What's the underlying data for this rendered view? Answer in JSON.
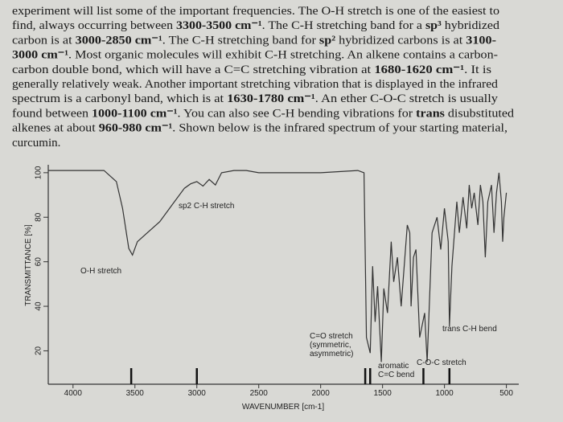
{
  "paragraph": [
    [
      "experiment will list some of the important frequencies.  The O-H stretch is one of the easiest to"
    ],
    [
      "find, always occurring between ",
      {
        "bold": "3300-3500 cm⁻¹"
      },
      ". The C-H stretching band for a ",
      {
        "bold": "sp³"
      },
      " hybridized"
    ],
    [
      "carbon is at ",
      {
        "bold": "3000-2850 cm⁻¹"
      },
      ".  The C-H stretching band for ",
      {
        "bold": "sp²"
      },
      " hybridized carbons is at ",
      {
        "bold": "3100-"
      }
    ],
    [
      {
        "bold": "3000 cm⁻¹"
      },
      ".  Most organic molecules will exhibit C-H stretching. An alkene contains a carbon-"
    ],
    [
      "carbon double bond, which will have a C=C stretching vibration at ",
      {
        "bold": "1680-1620 cm⁻¹"
      },
      ". It is"
    ],
    [
      "generally relatively weak. Another important stretching vibration that is displayed in the infrared"
    ],
    [
      "spectrum is a carbonyl band, which is at ",
      {
        "bold": "1630-1780 cm⁻¹"
      },
      ". An ether C-O-C stretch is usually"
    ],
    [
      "found between ",
      {
        "bold": "1000-1100 cm⁻¹"
      },
      ".  You can also see C-H bending vibrations for ",
      {
        "bold": "trans"
      },
      " disubstituted"
    ],
    [
      "alkenes at about ",
      {
        "bold": "960-980 cm⁻¹"
      },
      ".  Shown below is the infrared spectrum of your starting material,"
    ],
    [
      "curcumin."
    ]
  ],
  "chart_data": {
    "type": "line",
    "x_label": "WAVENUMBER [cm-1]",
    "y_label": "TRANSMITTANCE [%]",
    "xlim": [
      4200,
      400
    ],
    "ylim": [
      5,
      105
    ],
    "xticks": [
      4000,
      3500,
      3000,
      2500,
      2000,
      1500,
      1000,
      500
    ],
    "yticks": [
      20,
      40,
      60,
      80,
      100
    ],
    "color": "#333333",
    "x": [
      4200,
      3750,
      3650,
      3600,
      3550,
      3520,
      3480,
      3400,
      3300,
      3200,
      3100,
      3050,
      3000,
      2950,
      2900,
      2850,
      2800,
      2700,
      2600,
      2500,
      2000,
      1700,
      1650,
      1630,
      1600,
      1580,
      1560,
      1540,
      1510,
      1490,
      1460,
      1430,
      1410,
      1380,
      1350,
      1300,
      1280,
      1270,
      1250,
      1230,
      1200,
      1160,
      1140,
      1100,
      1060,
      1030,
      1000,
      970,
      960,
      940,
      900,
      880,
      850,
      820,
      800,
      780,
      760,
      730,
      710,
      690,
      670,
      650,
      620,
      600,
      580,
      560,
      540,
      530,
      520,
      500
    ],
    "values": [
      101,
      101,
      96,
      84,
      66,
      63,
      69,
      73,
      78,
      85.5,
      93,
      95,
      96,
      94,
      97,
      94.5,
      100,
      101,
      101,
      100,
      100,
      101,
      100,
      26,
      19,
      58,
      33,
      49,
      15,
      48,
      37,
      69,
      51,
      62,
      40,
      76.5,
      73,
      40,
      62,
      65.5,
      26,
      37,
      15,
      73,
      80,
      65.5,
      84,
      69,
      31,
      58,
      87,
      73,
      89,
      75,
      94.5,
      84,
      91,
      76.5,
      94.5,
      87,
      62,
      87,
      94.5,
      73,
      91,
      100,
      87,
      69,
      80,
      91
    ],
    "markers": [
      3530,
      3000,
      1640,
      1600,
      1170,
      960
    ],
    "annotations": [
      "O-H stretch",
      "sp2 C-H stretch",
      "C=O stretch",
      "(symmetric,",
      "asymmetric)",
      "trans C-H bend",
      "aromatic",
      "C=C bend",
      "C-O-C stretch"
    ]
  }
}
